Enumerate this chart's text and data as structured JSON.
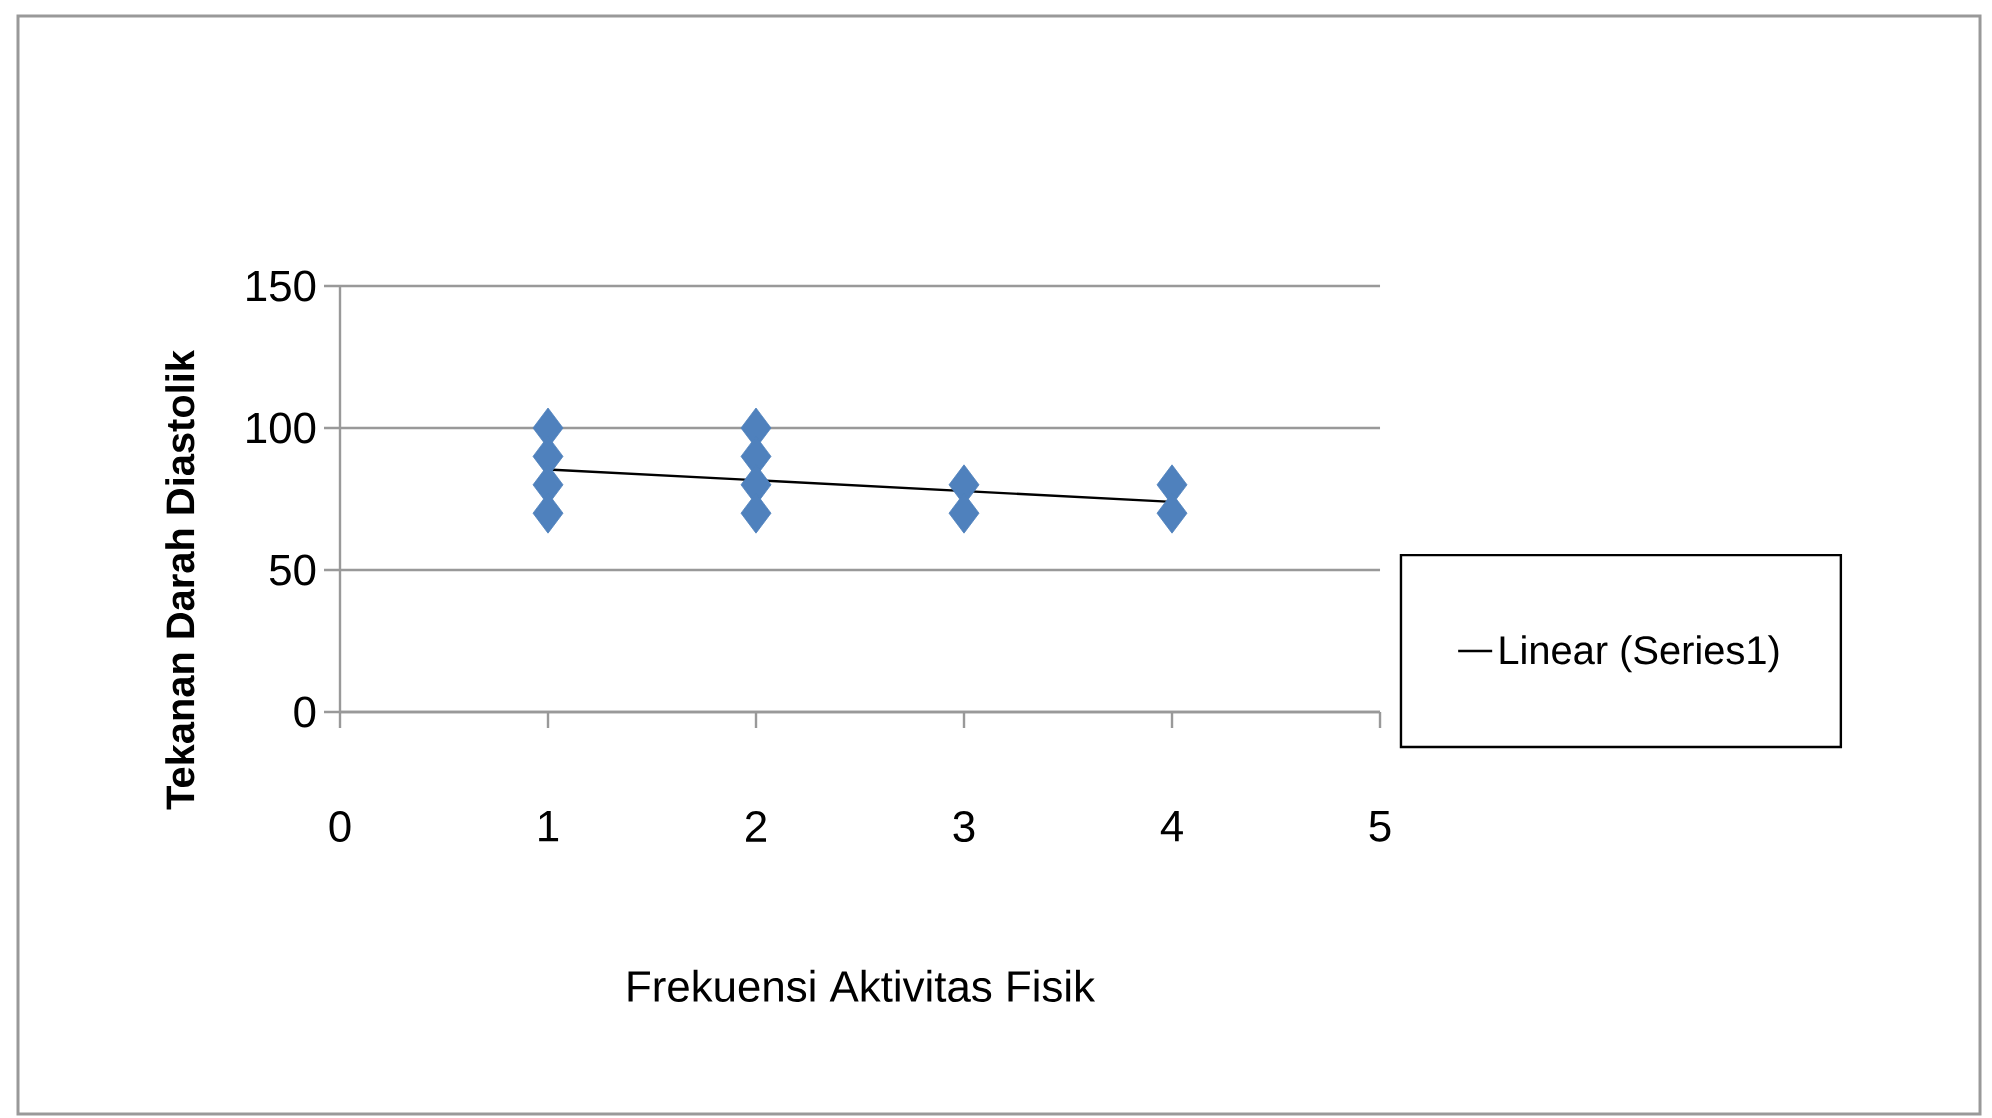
{
  "chart_data": {
    "type": "scatter",
    "xlabel": "Frekuensi Aktivitas Fisik",
    "ylabel": "Tekanan Darah Diastolik",
    "xlim": [
      0,
      5
    ],
    "ylim": [
      0,
      150
    ],
    "xticks": [
      0,
      1,
      2,
      3,
      4,
      5
    ],
    "yticks": [
      0,
      50,
      100,
      150
    ],
    "grid": "y",
    "legend": "right",
    "marker": "diamond",
    "series": [
      {
        "color": "#4f81bd",
        "x": [
          1,
          1,
          1,
          1,
          2,
          2,
          2,
          2,
          3,
          3,
          4,
          4
        ],
        "values": [
          100,
          90,
          80,
          70,
          100,
          90,
          80,
          70,
          80,
          70,
          80,
          70
        ]
      },
      {
        "name": "Linear (Series1)",
        "type": "line",
        "color": "#000000",
        "marker": "none",
        "line_style": "solid",
        "x": [
          1,
          4
        ],
        "values": [
          85.4,
          74
        ]
      }
    ]
  }
}
